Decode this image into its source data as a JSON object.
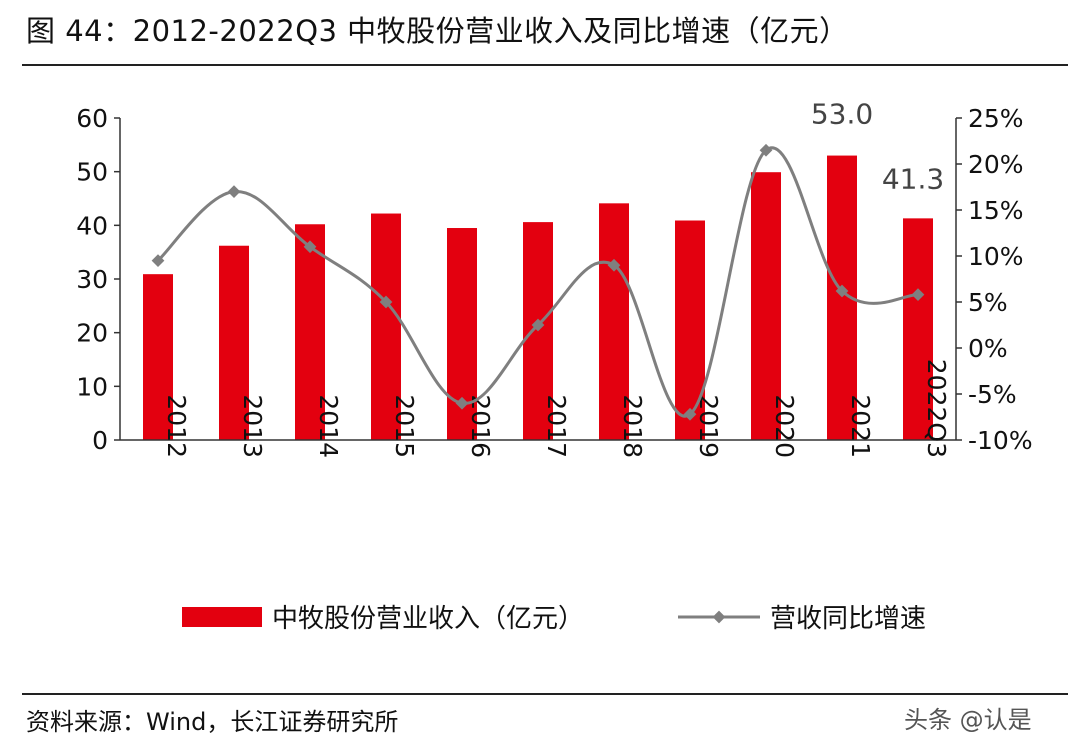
{
  "figure": {
    "title": "图 44：2012-2022Q3 中牧股份营业收入及同比增速（亿元）",
    "source": "资料来源：Wind，长江证券研究所",
    "watermark": "头条 @认是"
  },
  "chart_data": {
    "type": "bar+line",
    "categories": [
      "2012",
      "2013",
      "2014",
      "2015",
      "2016",
      "2017",
      "2018",
      "2019",
      "2020",
      "2021",
      "2022Q3"
    ],
    "series": [
      {
        "name": "中牧股份营业收入（亿元）",
        "type": "bar",
        "axis": "left",
        "color": "#e3000f",
        "values": [
          30.9,
          36.2,
          40.2,
          42.2,
          39.5,
          40.6,
          44.1,
          40.9,
          49.9,
          53.0,
          41.3
        ]
      },
      {
        "name": "营收同比增速",
        "type": "line",
        "axis": "right",
        "color": "#7f7f7f",
        "values": [
          9.5,
          17.0,
          11.0,
          5.0,
          -6.0,
          2.5,
          9.0,
          -7.2,
          21.5,
          6.2,
          5.8
        ]
      }
    ],
    "data_labels": [
      {
        "category": "2021",
        "text": "53.0"
      },
      {
        "category": "2022Q3",
        "text": "41.3"
      }
    ],
    "y_left": {
      "min": 0,
      "max": 60,
      "step": 10,
      "ticks": [
        "0",
        "10",
        "20",
        "30",
        "40",
        "50",
        "60"
      ]
    },
    "y_right": {
      "min": -10,
      "max": 25,
      "step": 5,
      "ticks": [
        "-10%",
        "-5%",
        "0%",
        "5%",
        "10%",
        "15%",
        "20%",
        "25%"
      ]
    },
    "grid": false,
    "legend_position": "bottom"
  }
}
